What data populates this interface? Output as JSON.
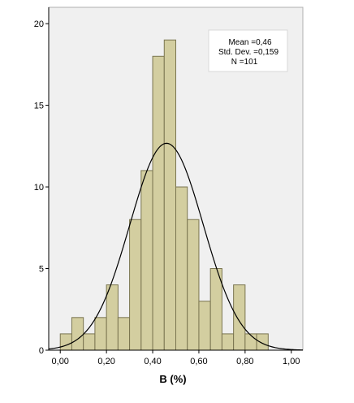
{
  "chart_data": {
    "type": "bar",
    "subtype": "histogram",
    "xlabel": "B (%)",
    "ylabel": "",
    "xlim": [
      -0.05,
      1.05
    ],
    "ylim": [
      0,
      21
    ],
    "x_ticks": [
      0.0,
      0.2,
      0.4,
      0.6,
      0.8,
      1.0
    ],
    "x_tick_labels": [
      "0,00",
      "0,20",
      "0,40",
      "0,60",
      "0,80",
      "1,00"
    ],
    "y_ticks": [
      0,
      5,
      10,
      15,
      20
    ],
    "y_tick_labels": [
      "0",
      "5",
      "10",
      "15",
      "20"
    ],
    "bin_width": 0.05,
    "bins": [
      {
        "start": 0.0,
        "end": 0.05,
        "count": 1
      },
      {
        "start": 0.05,
        "end": 0.1,
        "count": 2
      },
      {
        "start": 0.1,
        "end": 0.15,
        "count": 1
      },
      {
        "start": 0.15,
        "end": 0.2,
        "count": 2
      },
      {
        "start": 0.2,
        "end": 0.25,
        "count": 4
      },
      {
        "start": 0.25,
        "end": 0.3,
        "count": 2
      },
      {
        "start": 0.3,
        "end": 0.35,
        "count": 8
      },
      {
        "start": 0.35,
        "end": 0.4,
        "count": 11
      },
      {
        "start": 0.4,
        "end": 0.45,
        "count": 18
      },
      {
        "start": 0.45,
        "end": 0.5,
        "count": 19
      },
      {
        "start": 0.5,
        "end": 0.55,
        "count": 10
      },
      {
        "start": 0.55,
        "end": 0.6,
        "count": 8
      },
      {
        "start": 0.6,
        "end": 0.65,
        "count": 3
      },
      {
        "start": 0.65,
        "end": 0.7,
        "count": 5
      },
      {
        "start": 0.7,
        "end": 0.75,
        "count": 1
      },
      {
        "start": 0.75,
        "end": 0.8,
        "count": 4
      },
      {
        "start": 0.8,
        "end": 0.85,
        "count": 1
      },
      {
        "start": 0.85,
        "end": 0.9,
        "count": 1
      }
    ],
    "normal_curve": {
      "mean": 0.46,
      "std_dev": 0.159,
      "n": 101
    },
    "stats_box": {
      "line1": "Mean =0,46",
      "line2": "Std. Dev. =0,159",
      "line3": "N =101"
    },
    "grid": false,
    "colors": {
      "bar_fill": "#d3cea0",
      "bar_stroke": "#7a7550",
      "plot_background": "#f0f0f0",
      "curve": "#000000"
    }
  }
}
